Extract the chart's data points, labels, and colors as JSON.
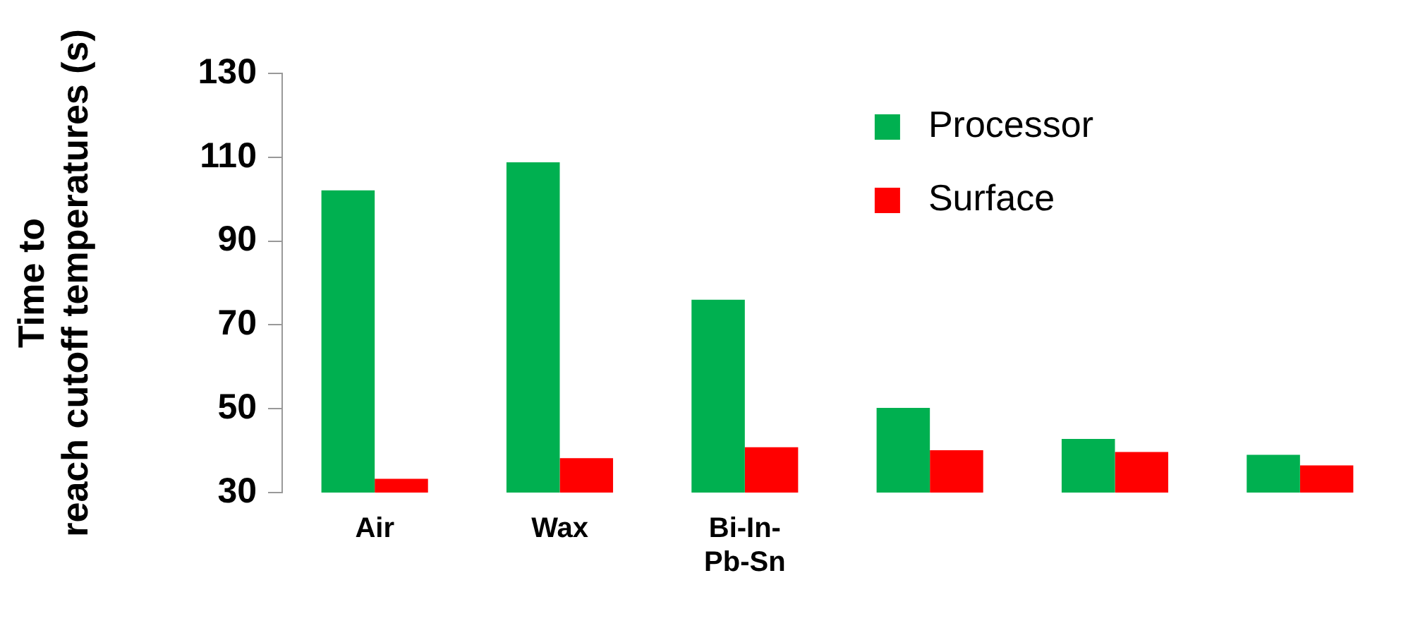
{
  "chart_data": {
    "type": "bar",
    "ylabel": "Time to reach cutoff temperatures (s)",
    "categories": [
      "Air",
      "Wax",
      "Bi-In-Pb-Sn",
      null,
      null,
      null
    ],
    "series": [
      {
        "name": "Processor",
        "color": "#00b050",
        "values": [
          102.1,
          108.8,
          76,
          50.2,
          42.8,
          39
        ]
      },
      {
        "name": "Surface",
        "color": "#ff0000",
        "values": [
          33.3,
          38.2,
          40.8,
          40.1,
          39.7,
          36.5
        ]
      }
    ],
    "ylim": [
      30,
      130
    ],
    "yticks": [
      30,
      50,
      70,
      90,
      110,
      130
    ],
    "grid": false,
    "legend": "top right"
  }
}
